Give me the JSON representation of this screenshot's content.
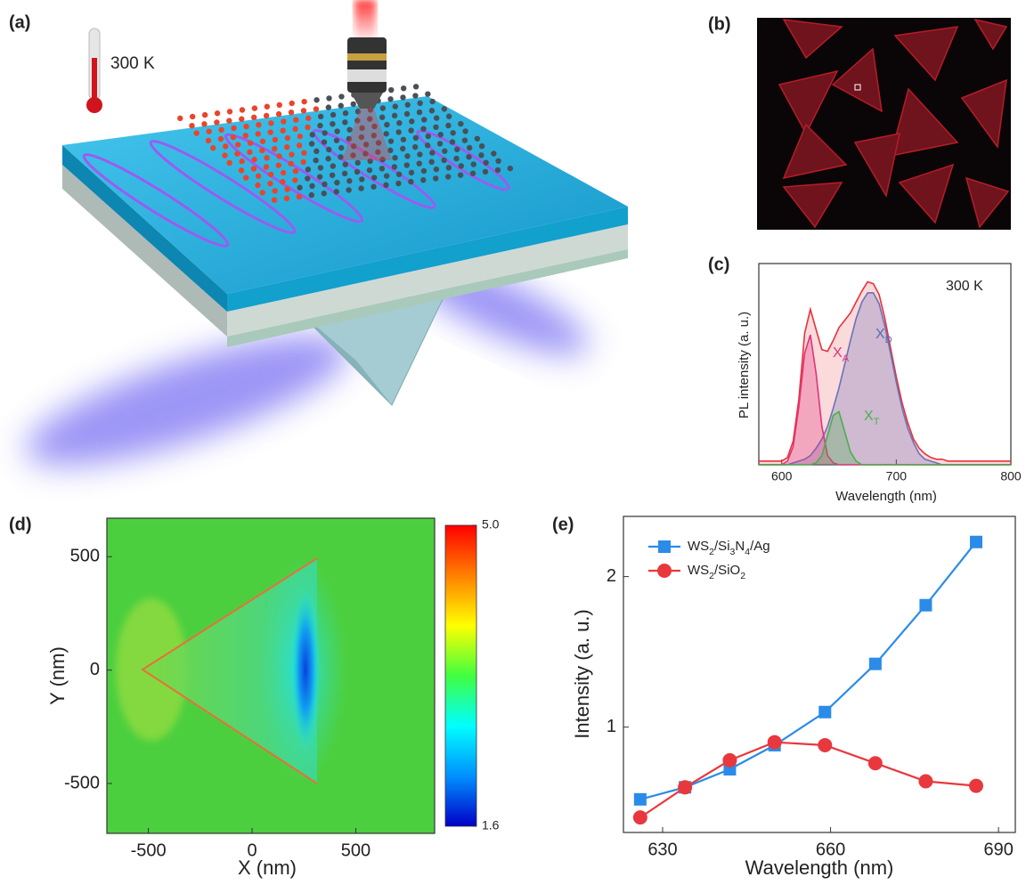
{
  "panel_labels": [
    "(a)",
    "(b)",
    "(c)",
    "(d)",
    "(e)"
  ],
  "illustration": {
    "temperature": "300 K"
  },
  "chart_data": [
    {
      "type": "line",
      "xlabel": "Wavelength (nm)",
      "ylabel": "PL intensity (a. u.)",
      "x": [
        580,
        585,
        590,
        595,
        600,
        605,
        610,
        615,
        620,
        625,
        630,
        635,
        640,
        645,
        650,
        655,
        660,
        665,
        670,
        675,
        680,
        685,
        690,
        695,
        700,
        705,
        710,
        715,
        720,
        725,
        730,
        735,
        740,
        745,
        750,
        755,
        760,
        765,
        770,
        775,
        780,
        785,
        790,
        795,
        800
      ],
      "xlim": [
        580,
        800
      ],
      "xticks": [
        600,
        700,
        800
      ],
      "ylim": [
        0,
        1.1
      ],
      "series": [
        {
          "color": "#e8323a",
          "fill": true,
          "values": [
            0.02,
            0.02,
            0.02,
            0.02,
            0.02,
            0.04,
            0.13,
            0.36,
            0.72,
            0.85,
            0.74,
            0.63,
            0.62,
            0.68,
            0.75,
            0.79,
            0.83,
            0.89,
            0.95,
            1.0,
            0.99,
            0.93,
            0.8,
            0.64,
            0.48,
            0.34,
            0.23,
            0.14,
            0.09,
            0.06,
            0.04,
            0.03,
            0.03,
            0.02,
            0.02,
            0.02,
            0.02,
            0.02,
            0.02,
            0.02,
            0.02,
            0.02,
            0.02,
            0.02,
            0.02
          ]
        },
        {
          "color": "#6a72b8",
          "fill": true,
          "values": [
            0,
            0,
            0,
            0,
            0,
            0,
            0.01,
            0.02,
            0.03,
            0.05,
            0.09,
            0.14,
            0.21,
            0.31,
            0.42,
            0.55,
            0.68,
            0.8,
            0.89,
            0.94,
            0.94,
            0.88,
            0.76,
            0.61,
            0.45,
            0.31,
            0.2,
            0.12,
            0.06,
            0.03,
            0.02,
            0.01,
            0,
            0,
            0,
            0,
            0,
            0,
            0,
            0,
            0,
            0,
            0,
            0,
            0
          ]
        },
        {
          "color": "#e0337a",
          "fill": true,
          "values": [
            0,
            0,
            0,
            0,
            0,
            0.02,
            0.1,
            0.32,
            0.61,
            0.71,
            0.5,
            0.21,
            0.05,
            0.01,
            0,
            0,
            0,
            0,
            0,
            0,
            0,
            0,
            0,
            0,
            0,
            0,
            0,
            0,
            0,
            0,
            0,
            0,
            0,
            0,
            0,
            0,
            0,
            0,
            0,
            0,
            0,
            0,
            0,
            0,
            0
          ]
        },
        {
          "color": "#4cae4c",
          "fill": true,
          "values": [
            0,
            0,
            0,
            0,
            0,
            0,
            0,
            0,
            0,
            0,
            0.01,
            0.05,
            0.16,
            0.27,
            0.29,
            0.18,
            0.07,
            0.02,
            0,
            0,
            0,
            0,
            0,
            0,
            0,
            0,
            0,
            0,
            0,
            0,
            0,
            0,
            0,
            0,
            0,
            0,
            0,
            0,
            0,
            0,
            0,
            0,
            0,
            0,
            0
          ]
        }
      ],
      "annotations": [
        {
          "text": "300 K"
        },
        {
          "text": "X",
          "sub": "A",
          "color": "#e0337a"
        },
        {
          "text": "X",
          "sub": "D",
          "color": "#5a6ab0"
        },
        {
          "text": "X",
          "sub": "T",
          "color": "#4cae4c"
        }
      ]
    },
    {
      "type": "heatmap",
      "xlabel": "X (nm)",
      "ylabel": "Y (nm)",
      "xlim": [
        -700,
        880
      ],
      "xticks": [
        -500,
        0,
        500
      ],
      "ylim": [
        -720,
        670
      ],
      "yticks": [
        -500,
        0,
        500
      ],
      "clim": [
        1.6,
        5.0
      ],
      "cticks": [
        {
          "value": 5,
          "label": "5.0"
        },
        {
          "value": 1.6,
          "label": "1.6"
        }
      ],
      "colormap": [
        "#0000c8",
        "#0090ff",
        "#00ffff",
        "#40ff40",
        "#ffff00",
        "#ff8000",
        "#ff0000"
      ]
    },
    {
      "type": "line",
      "xlabel": "Wavelength (nm)",
      "ylabel": "Intensity (a. u.)",
      "x": [
        626,
        634,
        642,
        650,
        659,
        668,
        677,
        686
      ],
      "xlim": [
        623,
        693
      ],
      "xticks": [
        630,
        660,
        690
      ],
      "ylim": [
        0.3,
        2.4
      ],
      "yticks": [
        1,
        2
      ],
      "legend": "upper left",
      "series": [
        {
          "name": "WS2/Si3N4/Ag",
          "color": "#2b8be8",
          "marker": "square",
          "values": [
            0.52,
            0.6,
            0.72,
            0.88,
            1.1,
            1.42,
            1.81,
            2.23
          ]
        },
        {
          "name": "WS2/SiO2",
          "color": "#e8383d",
          "marker": "circle",
          "values": [
            0.4,
            0.6,
            0.78,
            0.9,
            0.88,
            0.76,
            0.64,
            0.61
          ]
        }
      ]
    }
  ]
}
